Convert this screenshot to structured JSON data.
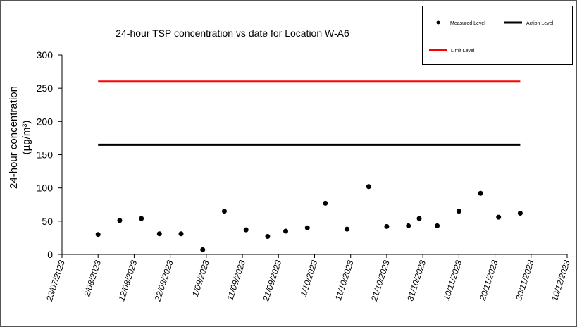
{
  "chart_data": {
    "type": "scatter",
    "title": "24-hour TSP concentration vs date for Location W-A6",
    "y_label": [
      "24-hour concentration",
      "(µg/m³)"
    ],
    "xlim": [
      "2023-07-23",
      "2023-12-10"
    ],
    "xticks": [
      {
        "value": "2023-07-23",
        "label": "23/07/2023"
      },
      {
        "value": "2023-08-02",
        "label": "2/08/2023"
      },
      {
        "value": "2023-08-12",
        "label": "12/08/2023"
      },
      {
        "value": "2023-08-22",
        "label": "22/08/2023"
      },
      {
        "value": "2023-09-01",
        "label": "1/09/2023"
      },
      {
        "value": "2023-09-11",
        "label": "11/09/2023"
      },
      {
        "value": "2023-09-21",
        "label": "21/09/2023"
      },
      {
        "value": "2023-10-01",
        "label": "1/10/2023"
      },
      {
        "value": "2023-10-11",
        "label": "11/10/2023"
      },
      {
        "value": "2023-10-21",
        "label": "21/10/2023"
      },
      {
        "value": "2023-10-31",
        "label": "31/10/2023"
      },
      {
        "value": "2023-11-10",
        "label": "10/11/2023"
      },
      {
        "value": "2023-11-20",
        "label": "20/11/2023"
      },
      {
        "value": "2023-11-30",
        "label": "30/11/2023"
      },
      {
        "value": "2023-12-10",
        "label": "10/12/2023"
      }
    ],
    "ylim": [
      0,
      300
    ],
    "yticks": [
      0,
      50,
      100,
      150,
      200,
      250,
      300
    ],
    "series": [
      {
        "name": "Measured Level",
        "color": "#000000",
        "style": "markers",
        "x": [
          "2023-08-02",
          "2023-08-08",
          "2023-08-14",
          "2023-08-19",
          "2023-08-25",
          "2023-08-31",
          "2023-09-06",
          "2023-09-12",
          "2023-09-18",
          "2023-09-23",
          "2023-09-29",
          "2023-10-04",
          "2023-10-10",
          "2023-10-16",
          "2023-10-21",
          "2023-10-27",
          "2023-10-30",
          "2023-11-04",
          "2023-11-10",
          "2023-11-16",
          "2023-11-21",
          "2023-11-27"
        ],
        "values": [
          30,
          51,
          54,
          31,
          31,
          7,
          65,
          37,
          27,
          35,
          40,
          77,
          38,
          102,
          42,
          43,
          54,
          43,
          65,
          92,
          56,
          62
        ]
      },
      {
        "name": "Action Level",
        "color": "#000000",
        "style": "line",
        "x": [
          "2023-08-02",
          "2023-11-27"
        ],
        "values": [
          165,
          165
        ]
      },
      {
        "name": "Limit Level",
        "color": "#ff0000",
        "style": "line",
        "x": [
          "2023-08-02",
          "2023-11-27"
        ],
        "values": [
          260,
          260
        ]
      }
    ]
  }
}
